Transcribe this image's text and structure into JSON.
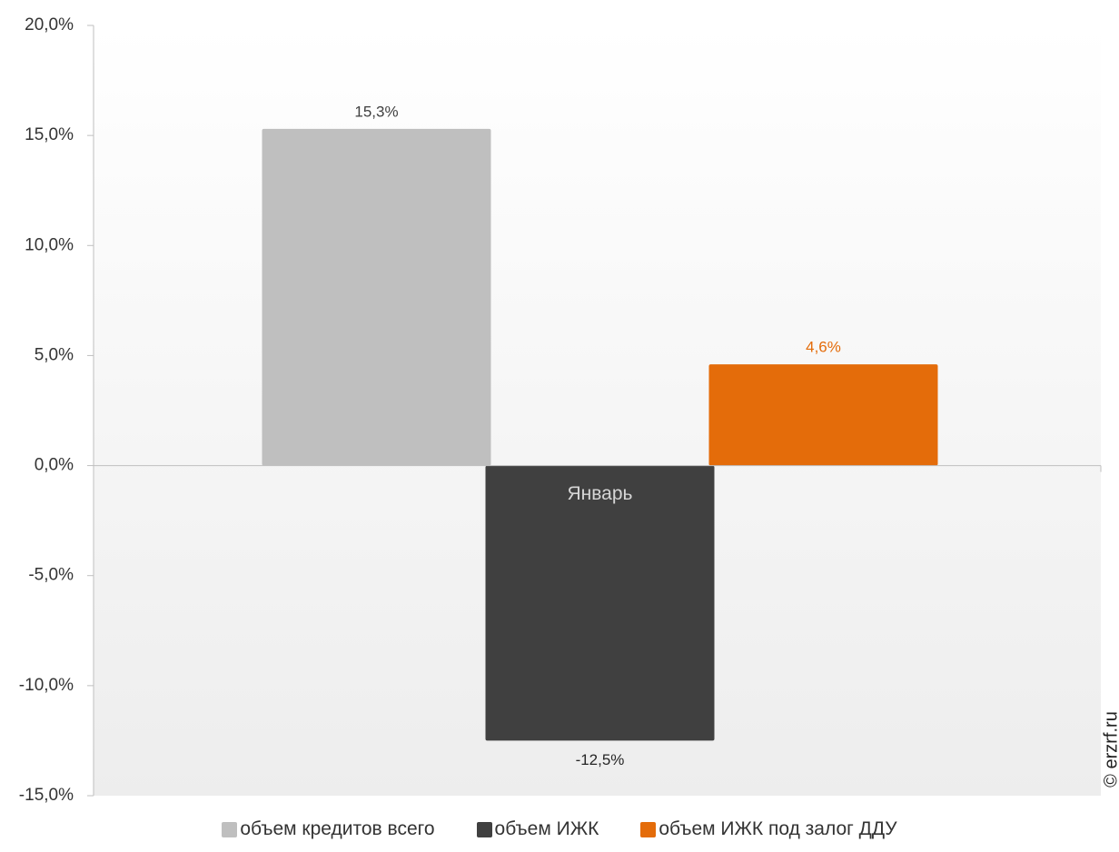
{
  "chart_data": {
    "type": "bar",
    "categories": [
      "Январь"
    ],
    "series": [
      {
        "name": "объем кредитов всего",
        "color": "#bfbfbf",
        "values": [
          15.3
        ],
        "labels": [
          "15,3%"
        ],
        "label_color": "#404040"
      },
      {
        "name": "объем ИЖК",
        "color": "#404040",
        "values": [
          -12.5
        ],
        "labels": [
          "-12,5%"
        ],
        "label_color": "#262626"
      },
      {
        "name": "объем ИЖК под залог ДДУ",
        "color": "#e46c0a",
        "values": [
          4.6
        ],
        "labels": [
          "4,6%"
        ],
        "label_color": "#e46c0a"
      }
    ],
    "ylim": [
      -15,
      20
    ],
    "yticks": [
      20,
      15,
      10,
      5,
      0,
      -5,
      -10,
      -15
    ],
    "ytick_labels": [
      "20,0%",
      "15,0%",
      "10,0%",
      "5,0%",
      "0,0%",
      "-5,0%",
      "-10,0%",
      "-15,0%"
    ],
    "title": "",
    "xlabel": "",
    "ylabel": "",
    "grid": false,
    "legend_position": "bottom"
  },
  "watermark": "© erzrf.ru"
}
